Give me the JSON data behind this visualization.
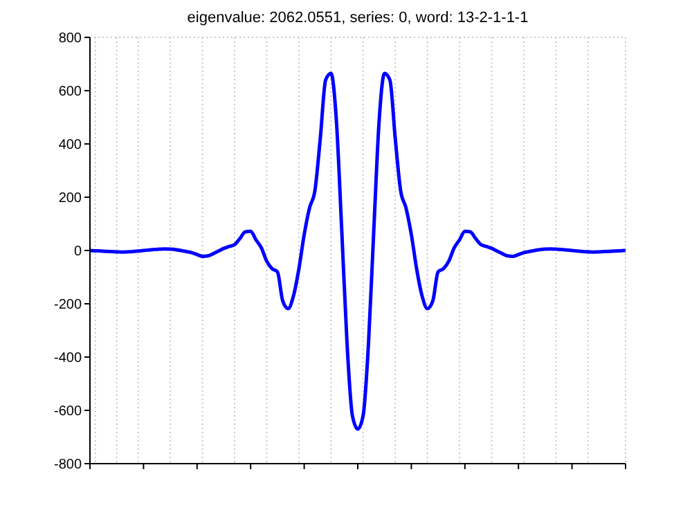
{
  "chart_data": {
    "type": "line",
    "title": "eigenvalue: 2062.0551, series: 0, word: 13-2-1-1-1",
    "categories": [
      null,
      null,
      null,
      null,
      null,
      null,
      null,
      null,
      null,
      null,
      null,
      null,
      null,
      null,
      null,
      null,
      null,
      null,
      null,
      null,
      null,
      null,
      null,
      null,
      null,
      null,
      null,
      null,
      null,
      null,
      null,
      null,
      null,
      null,
      null,
      null,
      null,
      null,
      null,
      null,
      null,
      null,
      null,
      null,
      null,
      null,
      null,
      null,
      null,
      null,
      null,
      null,
      null,
      null,
      null,
      null,
      null,
      null,
      null,
      null,
      null,
      null,
      null,
      null,
      null,
      null,
      null,
      null,
      null,
      null,
      null,
      null,
      null,
      null,
      null,
      null,
      null,
      null,
      null,
      null,
      null,
      null,
      null,
      null,
      null,
      null,
      null,
      null,
      null,
      null,
      null,
      null,
      null,
      null,
      null,
      null,
      null,
      null,
      null,
      null,
      null
    ],
    "series": [
      {
        "color": "#0000ff",
        "values": [
          0,
          -1,
          -2,
          -3,
          -4,
          -5,
          -6,
          -5,
          -4,
          -2,
          0,
          2,
          4,
          5,
          6,
          5,
          3,
          0,
          -4,
          -8,
          -15,
          -22,
          -20,
          -12,
          -2,
          8,
          15,
          22,
          45,
          70,
          72,
          40,
          10,
          -40,
          -68,
          -80,
          -190,
          -218,
          -170,
          -70,
          60,
          160,
          225,
          420,
          640,
          665,
          490,
          80,
          -350,
          -620,
          -670,
          -620,
          -350,
          80,
          490,
          665,
          640,
          420,
          225,
          160,
          60,
          -70,
          -170,
          -218,
          -190,
          -80,
          -68,
          -40,
          10,
          40,
          72,
          70,
          45,
          22,
          15,
          8,
          -2,
          -12,
          -20,
          -22,
          -15,
          -8,
          -4,
          0,
          3,
          5,
          6,
          5,
          4,
          2,
          0,
          -2,
          -4,
          -5,
          -6,
          -5,
          -4,
          -3,
          -2,
          -1,
          0
        ]
      }
    ],
    "ylim": [
      -800,
      800
    ],
    "yticks": [
      -800,
      -600,
      -400,
      -200,
      0,
      200,
      400,
      600,
      800
    ],
    "grid": true,
    "tick_labels": "y",
    "line_style": "solid",
    "marker": "none"
  }
}
